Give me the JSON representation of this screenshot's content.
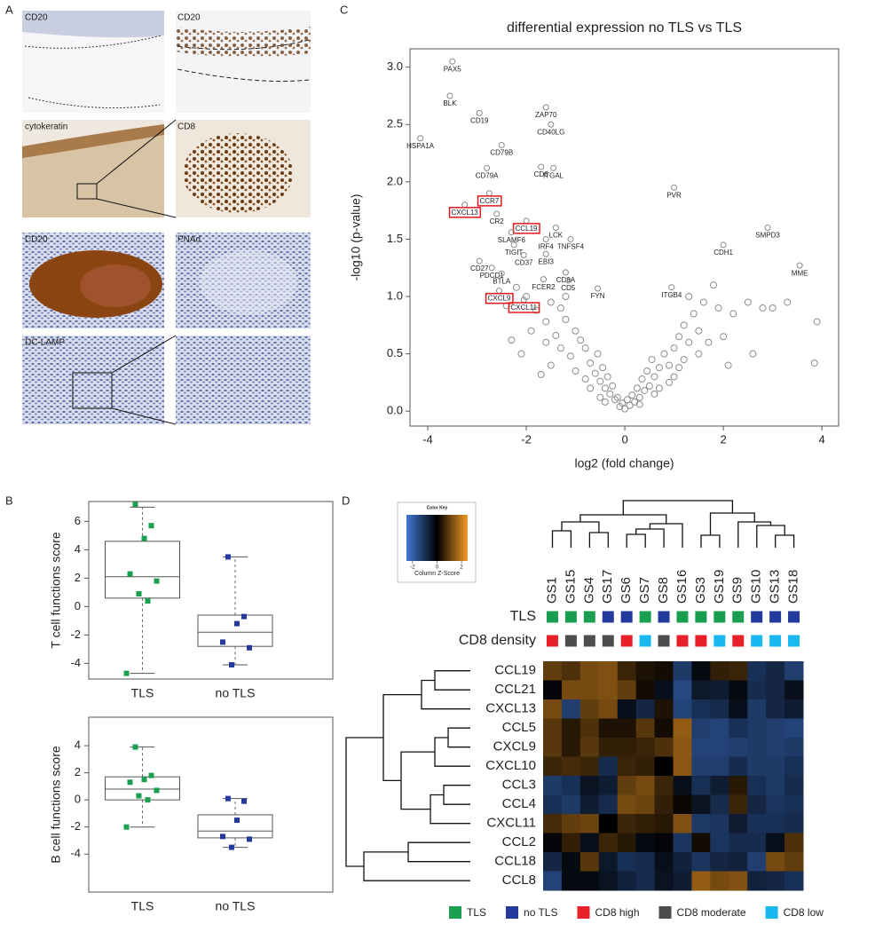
{
  "panel_labels": [
    "A",
    "B",
    "C",
    "D"
  ],
  "histology": {
    "labels": [
      "CD20",
      "CD20",
      "cytokeratin",
      "CD8",
      "CD20",
      "PNAd",
      "DC-LAMP"
    ]
  },
  "chart_data": [
    {
      "type": "box",
      "ylabel": "T cell functions score",
      "categories": [
        "TLS",
        "no TLS"
      ],
      "ylim": [
        -5.1,
        7.4
      ],
      "yticks": [
        -4,
        -2,
        0,
        2,
        4,
        6
      ],
      "series": [
        {
          "color": "#1a9e50",
          "values": [
            7.2,
            5.7,
            4.8,
            2.3,
            1.8,
            0.9,
            0.4,
            -4.7
          ],
          "q1": 0.6,
          "median": 2.1,
          "q3": 4.6,
          "whisker_low": -4.7,
          "whisker_high": 7.0
        },
        {
          "color": "#233a9c",
          "values": [
            3.5,
            -0.7,
            -1.2,
            -2.5,
            -2.9,
            -4.1
          ],
          "q1": -2.8,
          "median": -1.8,
          "q3": -0.6,
          "whisker_low": -4.1,
          "whisker_high": 3.5
        }
      ]
    },
    {
      "type": "box",
      "ylabel": "B cell functions score",
      "categories": [
        "TLS",
        "no TLS"
      ],
      "ylim": [
        -6.8,
        6.1
      ],
      "yticks": [
        -4,
        -2,
        0,
        2,
        4
      ],
      "series": [
        {
          "color": "#1a9e50",
          "values": [
            3.9,
            1.8,
            1.5,
            1.3,
            0.7,
            0.3,
            0.0,
            -2.0
          ],
          "q1": 0.0,
          "median": 0.8,
          "q3": 1.7,
          "whisker_low": -2.0,
          "whisker_high": 3.9
        },
        {
          "color": "#233a9c",
          "values": [
            0.1,
            -0.1,
            -1.5,
            -2.7,
            -2.9,
            -3.5
          ],
          "q1": -2.8,
          "median": -2.3,
          "q3": -1.1,
          "whisker_low": -3.5,
          "whisker_high": 0.1
        }
      ]
    },
    {
      "type": "scatter",
      "title": "differential expression no TLS vs TLS",
      "xlabel": "log2 (fold change)",
      "ylabel": "-log10 (p-value)",
      "xlim": [
        -4.36,
        4.34
      ],
      "ylim": [
        -0.13,
        3.16
      ],
      "xticks": [
        -4,
        -2,
        0,
        2,
        4
      ],
      "yticks": [
        {
          "value": 0,
          "label": "0.0"
        },
        {
          "value": 0.5,
          "label": "0.5"
        },
        {
          "value": 1,
          "label": "1.0"
        },
        {
          "value": 1.5,
          "label": "1.5"
        },
        {
          "value": 2,
          "label": "2.0"
        },
        {
          "value": 2.5,
          "label": "2.5"
        },
        {
          "value": 3,
          "label": "3.0"
        }
      ],
      "color": "#8c8c8c",
      "highlight_color": "#e31a1c",
      "points": [
        {
          "x": 0.0,
          "y": 0.02
        },
        {
          "x": 0.1,
          "y": 0.05
        },
        {
          "x": -0.1,
          "y": 0.04
        },
        {
          "x": 0.2,
          "y": 0.08
        },
        {
          "x": -0.2,
          "y": 0.1
        },
        {
          "x": 0.15,
          "y": 0.14
        },
        {
          "x": -0.15,
          "y": 0.12
        },
        {
          "x": 0.3,
          "y": 0.12
        },
        {
          "x": -0.3,
          "y": 0.15
        },
        {
          "x": 0.05,
          "y": 0.1
        },
        {
          "x": -0.05,
          "y": 0.07
        },
        {
          "x": 0.25,
          "y": 0.2
        },
        {
          "x": -0.25,
          "y": 0.22
        },
        {
          "x": 0.4,
          "y": 0.18
        },
        {
          "x": -0.4,
          "y": 0.2
        },
        {
          "x": 0.35,
          "y": 0.28
        },
        {
          "x": -0.35,
          "y": 0.3
        },
        {
          "x": 0.5,
          "y": 0.22
        },
        {
          "x": -0.5,
          "y": 0.26
        },
        {
          "x": 0.45,
          "y": 0.35
        },
        {
          "x": -0.45,
          "y": 0.38
        },
        {
          "x": 0.6,
          "y": 0.3
        },
        {
          "x": -0.6,
          "y": 0.33
        },
        {
          "x": 0.55,
          "y": 0.45
        },
        {
          "x": -0.55,
          "y": 0.5
        },
        {
          "x": 0.7,
          "y": 0.38
        },
        {
          "x": -0.7,
          "y": 0.42
        },
        {
          "x": 0.8,
          "y": 0.5
        },
        {
          "x": -0.8,
          "y": 0.55
        },
        {
          "x": 0.9,
          "y": 0.4
        },
        {
          "x": -0.9,
          "y": 0.62
        },
        {
          "x": 1.0,
          "y": 0.55
        },
        {
          "x": -1.0,
          "y": 0.7
        },
        {
          "x": 1.1,
          "y": 0.65
        },
        {
          "x": -1.1,
          "y": 0.48
        },
        {
          "x": 1.2,
          "y": 0.75
        },
        {
          "x": -1.2,
          "y": 0.8
        },
        {
          "x": 1.3,
          "y": 0.6
        },
        {
          "x": -1.3,
          "y": 0.9
        },
        {
          "x": 1.4,
          "y": 0.85
        },
        {
          "x": -1.4,
          "y": 0.66
        },
        {
          "x": 1.5,
          "y": 0.7
        },
        {
          "x": -1.5,
          "y": 0.95
        },
        {
          "x": 1.6,
          "y": 0.95
        },
        {
          "x": -1.6,
          "y": 0.78
        },
        {
          "x": 1.7,
          "y": 0.6
        },
        {
          "x": -1.8,
          "y": 0.88
        },
        {
          "x": 1.9,
          "y": 0.9
        },
        {
          "x": -2.0,
          "y": 1.0
        },
        {
          "x": 2.2,
          "y": 0.85
        },
        {
          "x": -2.2,
          "y": 1.08
        },
        {
          "x": 2.5,
          "y": 0.95
        },
        {
          "x": -2.4,
          "y": 0.92
        },
        {
          "x": 2.8,
          "y": 0.9
        },
        {
          "x": 1.2,
          "y": 0.45
        },
        {
          "x": -1.0,
          "y": 0.35
        },
        {
          "x": 0.6,
          "y": 0.15
        },
        {
          "x": -0.7,
          "y": 0.2
        },
        {
          "x": 1.5,
          "y": 0.5
        },
        {
          "x": -1.3,
          "y": 0.55
        },
        {
          "x": 0.9,
          "y": 0.25
        },
        {
          "x": -1.6,
          "y": 0.6
        },
        {
          "x": 2.0,
          "y": 0.65
        },
        {
          "x": -1.9,
          "y": 0.7
        },
        {
          "x": 1.0,
          "y": 0.3
        },
        {
          "x": -0.8,
          "y": 0.28
        },
        {
          "x": 3.3,
          "y": 0.95
        },
        {
          "x": 3.9,
          "y": 0.78
        },
        {
          "x": 0.3,
          "y": 0.06
        },
        {
          "x": -0.4,
          "y": 0.08
        },
        {
          "x": 1.8,
          "y": 1.1
        },
        {
          "x": -1.2,
          "y": 1.0
        },
        {
          "x": 2.6,
          "y": 0.5
        },
        {
          "x": -2.3,
          "y": 0.62
        },
        {
          "x": 3.0,
          "y": 0.9
        },
        {
          "x": 1.3,
          "y": 1.0
        },
        {
          "x": -0.5,
          "y": 0.12
        },
        {
          "x": 0.7,
          "y": 0.2
        },
        {
          "x": 1.1,
          "y": 0.38
        },
        {
          "x": -1.5,
          "y": 0.4
        },
        {
          "x": 2.1,
          "y": 0.4
        },
        {
          "x": -2.1,
          "y": 0.5
        },
        {
          "x": 3.85,
          "y": 0.42
        },
        {
          "x": -1.7,
          "y": 0.32
        }
      ],
      "genes": [
        {
          "label": "PAX5",
          "x": -3.5,
          "y": 3.05
        },
        {
          "label": "BLK",
          "x": -3.55,
          "y": 2.75
        },
        {
          "label": "HSPA1A",
          "x": -4.15,
          "y": 2.38
        },
        {
          "label": "CD19",
          "x": -2.95,
          "y": 2.6
        },
        {
          "label": "ZAP70",
          "x": -1.6,
          "y": 2.65
        },
        {
          "label": "CD40LG",
          "x": -1.5,
          "y": 2.5
        },
        {
          "label": "CD79B",
          "x": -2.5,
          "y": 2.32
        },
        {
          "label": "CD79A",
          "x": -2.8,
          "y": 2.12
        },
        {
          "label": "CD6",
          "x": -1.7,
          "y": 2.13
        },
        {
          "label": "ITGAL",
          "x": -1.45,
          "y": 2.12
        },
        {
          "label": "CCR7",
          "x": -2.75,
          "y": 1.9,
          "boxed": true
        },
        {
          "label": "CXCL13",
          "x": -3.25,
          "y": 1.8,
          "boxed": true
        },
        {
          "label": "CR2",
          "x": -2.6,
          "y": 1.72
        },
        {
          "label": "CCL19",
          "x": -2.0,
          "y": 1.66,
          "boxed": true
        },
        {
          "label": "SLAMF6",
          "x": -2.3,
          "y": 1.56
        },
        {
          "label": "LCK",
          "x": -1.4,
          "y": 1.6
        },
        {
          "label": "IRF4",
          "x": -1.6,
          "y": 1.5
        },
        {
          "label": "TNFSF4",
          "x": -1.1,
          "y": 1.5
        },
        {
          "label": "TIGIT",
          "x": -2.25,
          "y": 1.45
        },
        {
          "label": "CD37",
          "x": -2.05,
          "y": 1.36
        },
        {
          "label": "EBI3",
          "x": -1.6,
          "y": 1.37
        },
        {
          "label": "CD27",
          "x": -2.95,
          "y": 1.31
        },
        {
          "label": "PDCD1",
          "x": -2.7,
          "y": 1.25
        },
        {
          "label": "BTLA",
          "x": -2.5,
          "y": 1.2
        },
        {
          "label": "CD8A",
          "x": -1.2,
          "y": 1.21
        },
        {
          "label": "FCER2",
          "x": -1.65,
          "y": 1.15
        },
        {
          "label": "CD5",
          "x": -1.15,
          "y": 1.14
        },
        {
          "label": "CXCL9",
          "x": -2.55,
          "y": 1.05,
          "boxed": true
        },
        {
          "label": "CXCL11",
          "x": -2.05,
          "y": 0.97,
          "boxed": true
        },
        {
          "label": "FYN",
          "x": -0.55,
          "y": 1.07
        },
        {
          "label": "ITGB4",
          "x": 0.95,
          "y": 1.08
        },
        {
          "label": "PVR",
          "x": 1.0,
          "y": 1.95
        },
        {
          "label": "CDH1",
          "x": 2.0,
          "y": 1.45
        },
        {
          "label": "SMPD3",
          "x": 2.9,
          "y": 1.6
        },
        {
          "label": "MME",
          "x": 3.55,
          "y": 1.27
        }
      ]
    },
    {
      "type": "heatmap",
      "columns": [
        "GS1",
        "GS15",
        "GS4",
        "GS17",
        "GS6",
        "GS7",
        "GS8",
        "GS16",
        "GS3",
        "GS19",
        "GS9",
        "GS10",
        "GS13",
        "GS18"
      ],
      "rows": [
        "CCL19",
        "CCL21",
        "CXCL13",
        "CCL5",
        "CXCL9",
        "CXCL10",
        "CCL3",
        "CCL4",
        "CXCL11",
        "CCL2",
        "CCL18",
        "CCL8"
      ],
      "values": [
        [
          1.0,
          0.8,
          1.2,
          1.3,
          0.6,
          0.3,
          0.2,
          -1.2,
          -0.2,
          0.5,
          0.6,
          -1.0,
          -0.8,
          -1.3
        ],
        [
          -0.1,
          1.2,
          1.2,
          1.3,
          1.0,
          0.2,
          -0.3,
          -1.5,
          -0.5,
          -0.6,
          -0.2,
          -0.9,
          -0.8,
          -0.3
        ],
        [
          1.2,
          -1.3,
          1.0,
          1.2,
          -0.3,
          -0.8,
          0.3,
          -1.4,
          -1.0,
          -0.9,
          -0.3,
          -1.2,
          -0.8,
          -0.6
        ],
        [
          0.9,
          0.4,
          0.8,
          0.3,
          0.3,
          0.9,
          0.2,
          1.5,
          -1.3,
          -1.4,
          -1.0,
          -1.2,
          -1.3,
          -1.4
        ],
        [
          0.9,
          0.4,
          0.9,
          0.5,
          0.5,
          0.6,
          0.8,
          1.4,
          -1.4,
          -1.4,
          -1.3,
          -1.2,
          -1.3,
          -1.2
        ],
        [
          0.6,
          0.7,
          0.6,
          -0.9,
          0.6,
          0.5,
          0.0,
          1.4,
          -1.3,
          -1.3,
          -0.9,
          -1.2,
          -1.2,
          -1.0
        ],
        [
          -1.2,
          -1.0,
          -0.4,
          -0.6,
          1.0,
          1.2,
          0.6,
          -0.3,
          -1.0,
          -0.6,
          0.4,
          -1.0,
          -1.2,
          -0.9
        ],
        [
          -1.0,
          -1.2,
          -0.6,
          -0.9,
          1.2,
          1.1,
          0.5,
          0.1,
          -0.4,
          -0.9,
          0.6,
          -0.8,
          -1.1,
          -1.0
        ],
        [
          0.7,
          1.0,
          1.1,
          0.0,
          0.6,
          0.5,
          0.4,
          1.3,
          -1.2,
          -1.1,
          -0.6,
          -1.0,
          -1.0,
          -0.9
        ],
        [
          -0.1,
          0.5,
          -0.3,
          0.6,
          0.4,
          -0.2,
          -0.1,
          -1.1,
          0.2,
          -1.1,
          -0.9,
          -0.9,
          -0.3,
          0.8
        ],
        [
          -0.8,
          -0.2,
          0.9,
          -0.5,
          -1.0,
          -0.9,
          -0.3,
          -0.7,
          -1.1,
          -0.8,
          -0.7,
          -1.3,
          1.2,
          1.0
        ],
        [
          -1.4,
          -0.2,
          -0.2,
          -0.4,
          -0.7,
          -0.9,
          -0.4,
          -0.6,
          1.5,
          1.2,
          1.3,
          -0.7,
          -0.8,
          -1.0
        ]
      ],
      "zlim": [
        -2.5,
        2.5
      ],
      "colors": [
        "#3f78d6",
        "#000000",
        "#f59a23"
      ],
      "color_key": {
        "title": "Color Key",
        "label": "Column Z-Score",
        "ticks": [
          -2,
          0,
          2
        ]
      },
      "annotation_rows": [
        {
          "label": "TLS",
          "groups": [
            0,
            0,
            0,
            1,
            1,
            0,
            1,
            0,
            0,
            0,
            0,
            1,
            1,
            1
          ]
        },
        {
          "label": "CD8 density",
          "groups": [
            2,
            3,
            3,
            3,
            2,
            4,
            3,
            2,
            2,
            4,
            2,
            4,
            4,
            4
          ]
        }
      ],
      "legend": [
        {
          "label": "TLS",
          "color": "#1a9e50"
        },
        {
          "label": "no TLS",
          "color": "#233a9c"
        },
        {
          "label": "CD8 high",
          "color": "#e8202a"
        },
        {
          "label": "CD8 moderate",
          "color": "#4d4d4d"
        },
        {
          "label": "CD8 low",
          "color": "#1ab8f0"
        }
      ]
    }
  ]
}
